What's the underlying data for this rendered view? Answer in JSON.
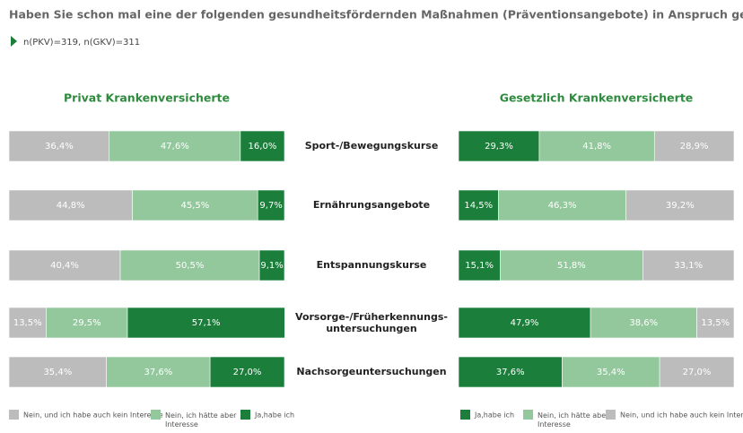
{
  "header": {
    "title": "Haben Sie schon mal eine der folgenden gesundheitsfördernden Maßnahmen (Präventionsangebote) in Anspruch genommen?",
    "note": "n(PKV)=319, n(GKV)=311"
  },
  "chart_data": {
    "type": "bar",
    "stacked": true,
    "categories": [
      "Sport-/Bewegungskurse",
      "Ernährungsangebote",
      "Entspannungskurse",
      "Vorsorge-/Früherkennungs-\nuntersuchungen",
      "Nachsorgeuntersuchungen"
    ],
    "panels": [
      {
        "title": "Privat Krankenversicherte",
        "xlim": [
          0,
          100
        ],
        "series": [
          {
            "name": "Nein, und ich habe auch kein Interesse",
            "color": "#bcbcbc",
            "values": [
              36.4,
              44.8,
              40.4,
              13.5,
              35.4
            ],
            "value_labels": [
              "36,4%",
              "44,8%",
              "40,4%",
              "13,5%",
              "35,4%"
            ]
          },
          {
            "name": "Nein, ich hätte aber\nInteresse",
            "color": "#93c89c",
            "values": [
              47.6,
              45.5,
              50.5,
              29.5,
              37.6
            ],
            "value_labels": [
              "47,6%",
              "45,5%",
              "50,5%",
              "29,5%",
              "37,6%"
            ]
          },
          {
            "name": "Ja,habe ich",
            "color": "#1b7f3b",
            "values": [
              16.0,
              9.7,
              9.1,
              57.1,
              27.0
            ],
            "value_labels": [
              "16,0%",
              "9,7%",
              "9,1%",
              "57,1%",
              "27,0%"
            ]
          }
        ]
      },
      {
        "title": "Gesetzlich Krankenversicherte",
        "xlim": [
          0,
          100
        ],
        "series": [
          {
            "name": "Ja,habe ich",
            "color": "#1b7f3b",
            "values": [
              29.3,
              14.5,
              15.1,
              47.9,
              37.6
            ],
            "value_labels": [
              "29,3%",
              "14,5%",
              "15,1%",
              "47,9%",
              "37,6%"
            ]
          },
          {
            "name": "Nein, ich hätte aber\nInteresse",
            "color": "#93c89c",
            "values": [
              41.8,
              46.3,
              51.8,
              38.6,
              35.4
            ],
            "value_labels": [
              "41,8%",
              "46,3%",
              "51,8%",
              "38,6%",
              "35,4%"
            ]
          },
          {
            "name": "Nein, und ich habe auch kein Interesse",
            "color": "#bcbcbc",
            "values": [
              28.9,
              39.2,
              33.1,
              13.5,
              27.0
            ],
            "value_labels": [
              "28,9%",
              "39,2%",
              "33,1%",
              "13,5%",
              "27,0%"
            ]
          }
        ]
      }
    ]
  }
}
